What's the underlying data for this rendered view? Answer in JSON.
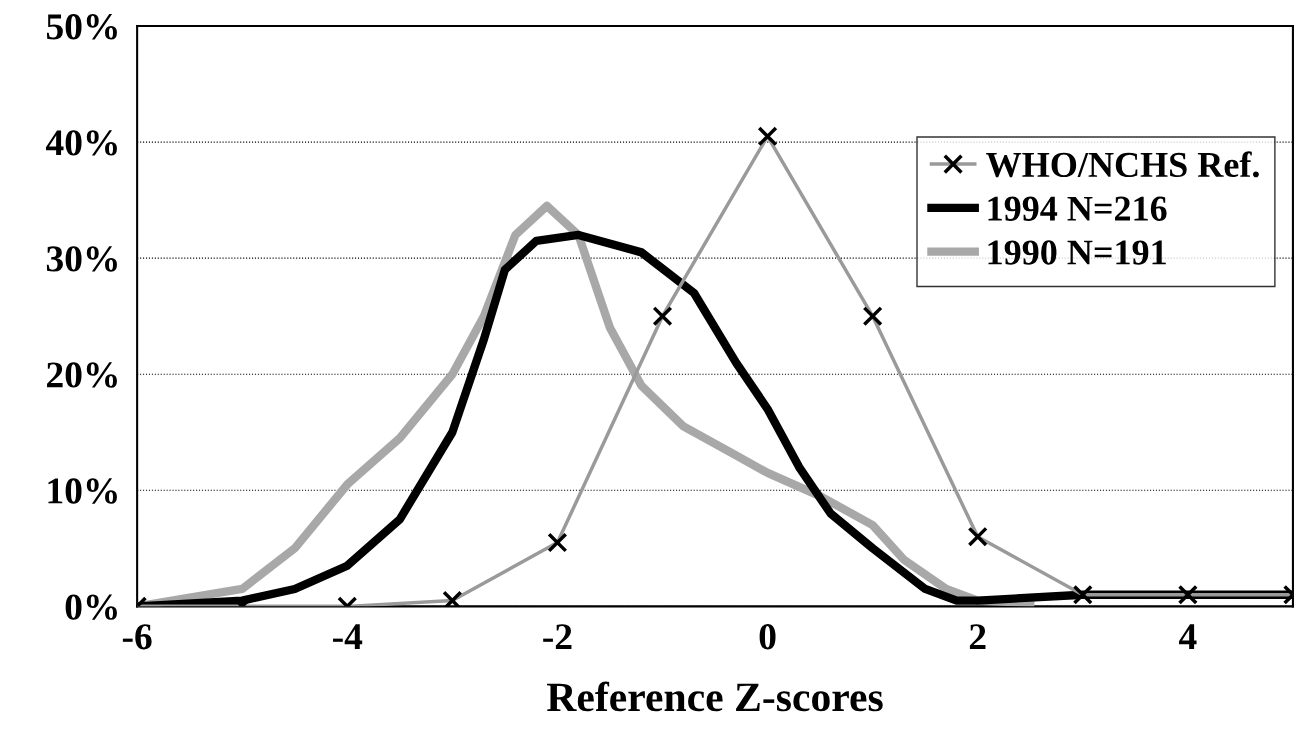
{
  "chart_data": {
    "type": "line",
    "xlabel": "Reference Z-scores",
    "xlim": [
      -6,
      5
    ],
    "xticks": [
      -6,
      -4,
      -2,
      0,
      2,
      4
    ],
    "ylim": [
      0,
      50
    ],
    "yticks": [
      {
        "value": 0,
        "label": "0%"
      },
      {
        "value": 10,
        "label": "10%"
      },
      {
        "value": 20,
        "label": "20%"
      },
      {
        "value": 30,
        "label": "30%"
      },
      {
        "value": 40,
        "label": "40%"
      },
      {
        "value": 50,
        "label": "50%"
      }
    ],
    "grid": "y",
    "legend": "right",
    "line_style": "solid",
    "series": [
      {
        "name": "WHO/NCHS Ref.",
        "color": "#9a9a9a",
        "marker": "cross",
        "x": [
          -6,
          -5,
          -4,
          -3,
          -2,
          -1,
          0,
          1,
          2,
          3,
          4,
          5
        ],
        "values": [
          0,
          0,
          0,
          0.5,
          5.5,
          25,
          40.5,
          25,
          6,
          1,
          1,
          1
        ]
      },
      {
        "name": "1994 N=216",
        "color": "#000000",
        "marker": "none",
        "x": [
          -6,
          -5,
          -4.5,
          -4,
          -3.5,
          -3,
          -2.7,
          -2.5,
          -2.2,
          -1.8,
          -1.2,
          -0.7,
          -0.3,
          0,
          0.3,
          0.6,
          1,
          1.5,
          1.8,
          2,
          3,
          4,
          5
        ],
        "values": [
          0,
          0.5,
          1.5,
          3.5,
          7.5,
          15,
          23,
          29,
          31.5,
          32,
          30.5,
          27,
          21,
          17,
          12,
          8,
          5,
          1.5,
          0.5,
          0.5,
          1,
          1,
          1
        ]
      },
      {
        "name": "1990 N=191",
        "color": "#a8a8a8",
        "marker": "none",
        "x": [
          -6,
          -5,
          -4.5,
          -4,
          -3.5,
          -3,
          -2.7,
          -2.4,
          -2.1,
          -1.8,
          -1.5,
          -1.2,
          -0.8,
          -0.3,
          0,
          0.5,
          1,
          1.3,
          1.7,
          2,
          2.5
        ],
        "values": [
          0,
          1.5,
          5,
          10.5,
          14.5,
          20,
          25,
          32,
          34.5,
          32,
          24,
          19,
          15.5,
          13,
          11.5,
          9.5,
          7,
          4,
          1.5,
          0.5,
          0.3
        ]
      }
    ]
  }
}
